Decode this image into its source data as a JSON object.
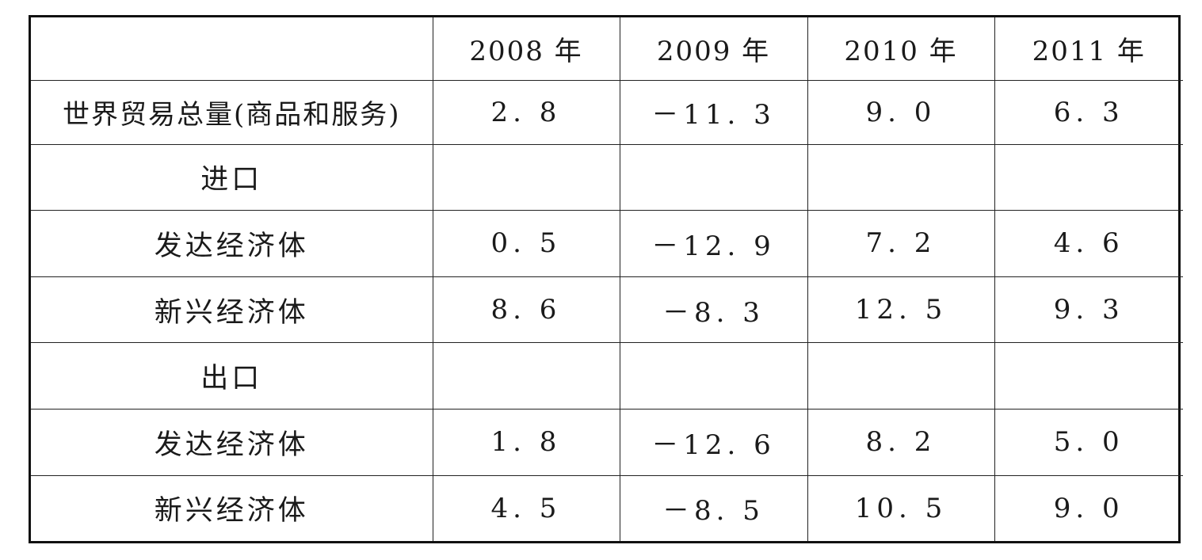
{
  "table": {
    "header": {
      "corner": "",
      "years": [
        "2008 年",
        "2009 年",
        "2010 年",
        "2011 年"
      ]
    },
    "rows": [
      {
        "label": "世界贸易总量(商品和服务)",
        "values": [
          "2. 8",
          "－11. 3",
          "9. 0",
          "6. 3"
        ]
      },
      {
        "label": "进口",
        "values": [
          "",
          "",
          "",
          ""
        ]
      },
      {
        "label": "发达经济体",
        "values": [
          "0. 5",
          "－12. 9",
          "7. 2",
          "4. 6"
        ]
      },
      {
        "label": "新兴经济体",
        "values": [
          "8. 6",
          "－8. 3",
          "12. 5",
          "9. 3"
        ]
      },
      {
        "label": "出口",
        "values": [
          "",
          "",
          "",
          ""
        ]
      },
      {
        "label": "发达经济体",
        "values": [
          "1. 8",
          "－12. 6",
          "8. 2",
          "5. 0"
        ]
      },
      {
        "label": "新兴经济体",
        "values": [
          "4. 5",
          "－8. 5",
          "10. 5",
          "9. 0"
        ]
      }
    ]
  }
}
